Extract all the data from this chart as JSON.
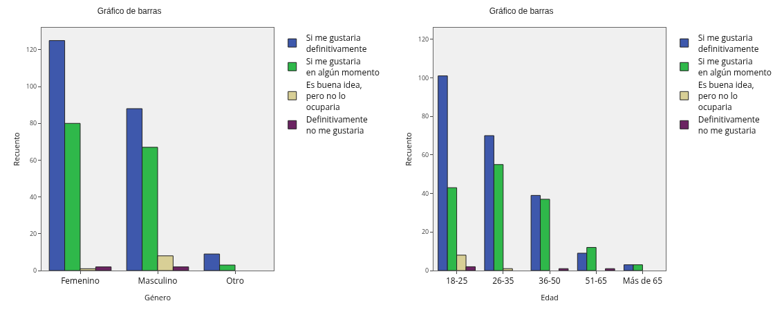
{
  "chart_data": [
    {
      "type": "bar",
      "title": "Gráfico de barras",
      "xlabel": "Género",
      "ylabel": "Recuento",
      "categories": [
        "Femenino",
        "Masculino",
        "Otro"
      ],
      "ylim": [
        0,
        132
      ],
      "yticks": [
        0,
        20,
        40,
        60,
        80,
        100,
        120
      ],
      "grid": false,
      "legend": "top right",
      "series": [
        {
          "name": "Si me gustaria definitivamente",
          "color": "#3e58ac",
          "values": [
            125,
            88,
            9
          ]
        },
        {
          "name": "Si me gustaria en algún momento",
          "color": "#2fb84a",
          "values": [
            80,
            67,
            3
          ]
        },
        {
          "name": "Es buena idea, pero no lo ocuparia",
          "color": "#d8cf96",
          "values": [
            1,
            8,
            0
          ]
        },
        {
          "name": "Definitivamente no me gustaria",
          "color": "#6b2462",
          "values": [
            2,
            2,
            0
          ]
        }
      ]
    },
    {
      "type": "bar",
      "title": "Gráfico de barras",
      "xlabel": "Edad",
      "ylabel": "Recuento",
      "categories": [
        "18-25",
        "26-35",
        "36-50",
        "51-65",
        "Más de 65"
      ],
      "ylim": [
        0,
        126
      ],
      "yticks": [
        0,
        20,
        40,
        60,
        80,
        100,
        120
      ],
      "grid": false,
      "legend": "top right",
      "series": [
        {
          "name": "Si me gustaria definitivamente",
          "color": "#3e58ac",
          "values": [
            101,
            70,
            39,
            9,
            3
          ]
        },
        {
          "name": "Si me gustaria en algún momento",
          "color": "#2fb84a",
          "values": [
            43,
            55,
            37,
            12,
            3
          ]
        },
        {
          "name": "Es buena idea, pero no lo ocuparia",
          "color": "#d8cf96",
          "values": [
            8,
            1,
            0,
            0,
            0
          ]
        },
        {
          "name": "Definitivamente no me gustaria",
          "color": "#6b2462",
          "values": [
            2,
            0,
            1,
            1,
            0
          ]
        }
      ]
    }
  ]
}
